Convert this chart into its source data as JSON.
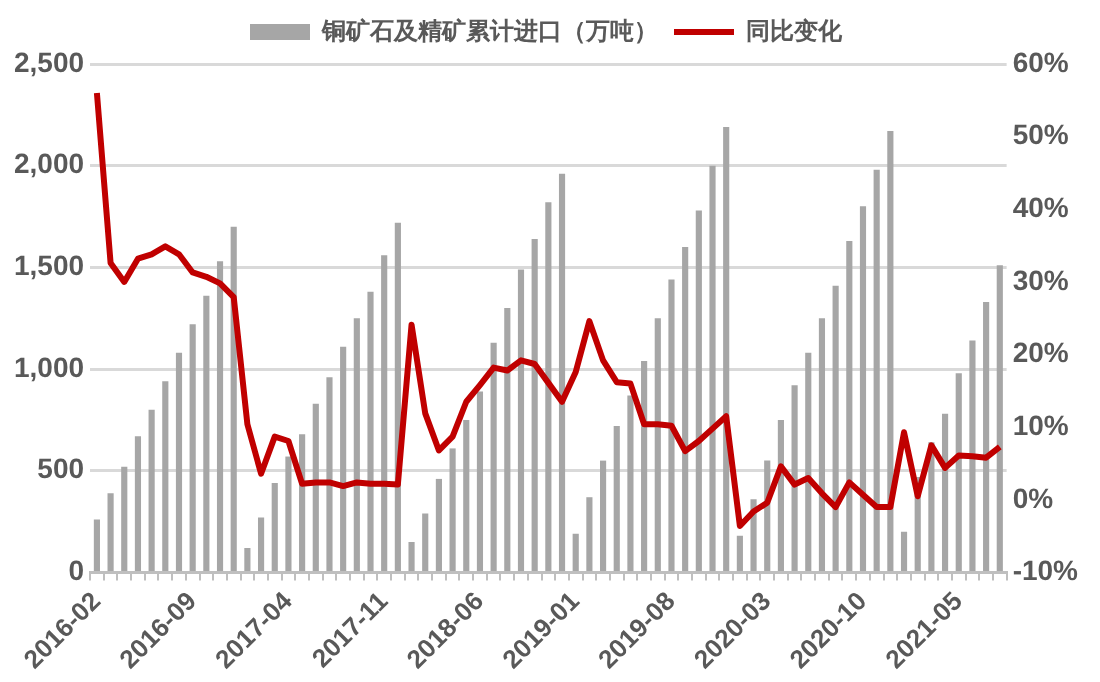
{
  "chart_data": {
    "type": "bar",
    "categories": [
      "2016-02",
      null,
      null,
      null,
      null,
      null,
      null,
      "2016-09",
      null,
      null,
      null,
      null,
      null,
      null,
      "2017-04",
      null,
      null,
      null,
      null,
      null,
      null,
      "2017-11",
      null,
      null,
      null,
      null,
      null,
      null,
      "2018-06",
      null,
      null,
      null,
      null,
      null,
      null,
      "2019-01",
      null,
      null,
      null,
      null,
      null,
      null,
      "2019-08",
      null,
      null,
      null,
      null,
      null,
      null,
      "2020-03",
      null,
      null,
      null,
      null,
      null,
      null,
      "2020-10",
      null,
      null,
      null,
      null,
      null,
      null,
      "2021-05",
      null,
      null,
      null
    ],
    "series": [
      {
        "name": "铜矿石及精矿累计进口（万吨）",
        "color": "#a6a6a6",
        "values": [
          260,
          390,
          520,
          670,
          800,
          940,
          1080,
          1220,
          1360,
          1530,
          1700,
          120,
          270,
          440,
          570,
          680,
          830,
          960,
          1110,
          1250,
          1380,
          1560,
          1720,
          150,
          290,
          460,
          610,
          750,
          890,
          1130,
          1300,
          1490,
          1640,
          1820,
          1960,
          190,
          370,
          550,
          720,
          870,
          1040,
          1250,
          1440,
          1600,
          1780,
          2000,
          2190,
          180,
          360,
          550,
          750,
          920,
          1080,
          1250,
          1410,
          1630,
          1800,
          1980,
          2170,
          200,
          470,
          640,
          780,
          980,
          1140,
          1330,
          1510
        ]
      },
      {
        "name": "同比变化",
        "type": "line",
        "axis": "y2",
        "color": "#c00000",
        "values": [
          56.0,
          32.6,
          30.0,
          33.2,
          33.8,
          34.9,
          33.8,
          31.3,
          30.7,
          29.8,
          27.9,
          10.4,
          3.6,
          8.7,
          8.1,
          2.2,
          2.4,
          2.4,
          1.9,
          2.4,
          2.2,
          2.2,
          2.1,
          24.1,
          11.9,
          6.8,
          8.7,
          13.5,
          15.8,
          18.2,
          17.8,
          19.2,
          18.7,
          16.1,
          13.5,
          17.6,
          24.6,
          19.2,
          16.2,
          16.0,
          10.4,
          10.4,
          10.2,
          6.7,
          8.1,
          9.8,
          11.5,
          -3.6,
          -1.6,
          -0.4,
          4.6,
          2.1,
          3.0,
          0.9,
          -1.0,
          2.4,
          0.7,
          -1.0,
          -1.0,
          9.3,
          0.5,
          7.5,
          4.4,
          6.1,
          6.0,
          5.8,
          7.3
        ]
      }
    ],
    "ylim": [
      0,
      2500
    ],
    "yticks": [
      0,
      {
        "value": 500,
        "label": "500"
      },
      {
        "value": 1000,
        "label": "1,000"
      },
      {
        "value": 1500,
        "label": "1,500"
      },
      {
        "value": 2000,
        "label": "2,000"
      },
      {
        "value": 2500,
        "label": "2,500"
      }
    ],
    "y2lim": [
      -10,
      60
    ],
    "y2ticks": [
      {
        "value": -10,
        "label": "-10%"
      },
      {
        "value": 0,
        "label": "0%"
      },
      {
        "value": 10,
        "label": "10%"
      },
      {
        "value": 20,
        "label": "20%"
      },
      {
        "value": 30,
        "label": "30%"
      },
      {
        "value": 40,
        "label": "40%"
      },
      {
        "value": 50,
        "label": "50%"
      },
      {
        "value": 60,
        "label": "60%"
      }
    ],
    "grid": "y",
    "legend": "top",
    "marker": "none",
    "line_style": "solid"
  }
}
